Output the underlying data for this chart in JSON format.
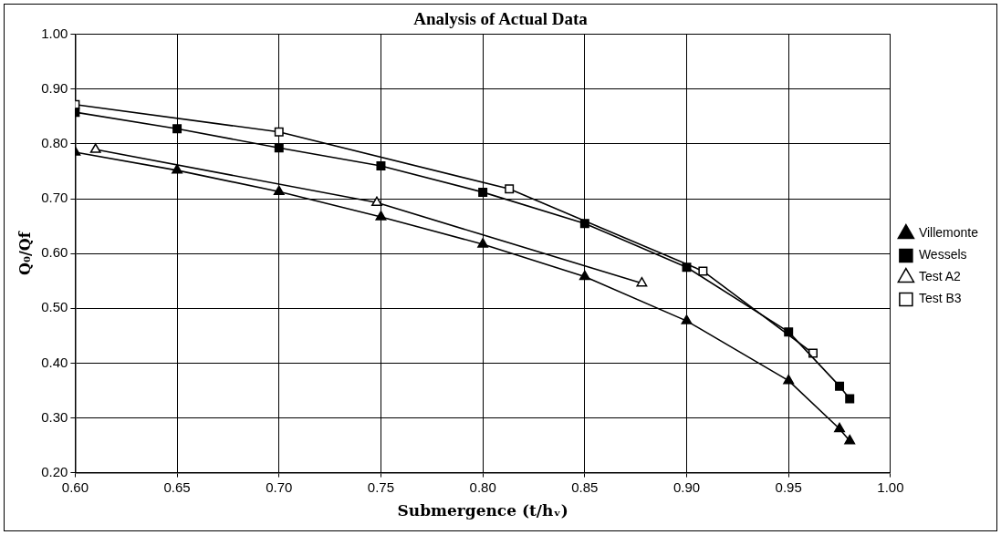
{
  "chart_data": {
    "type": "line",
    "title": "Analysis of Actual Data",
    "xlabel": "Submergence (t/hᵥ)",
    "ylabel": "Q₀/Qf",
    "xlim": [
      0.6,
      1.0
    ],
    "xticks": [
      {
        "value": 0.6,
        "label": "0.60"
      },
      {
        "value": 0.65,
        "label": "0.65"
      },
      {
        "value": 0.7,
        "label": "0.70"
      },
      {
        "value": 0.75,
        "label": "0.75"
      },
      {
        "value": 0.8,
        "label": "0.80"
      },
      {
        "value": 0.85,
        "label": "0.85"
      },
      {
        "value": 0.9,
        "label": "0.90"
      },
      {
        "value": 0.95,
        "label": "0.95"
      },
      {
        "value": 1.0,
        "label": "1.00"
      }
    ],
    "ylim": [
      0.2,
      1.0
    ],
    "yticks": [
      {
        "value": 0.2,
        "label": "0.20"
      },
      {
        "value": 0.3,
        "label": "0.30"
      },
      {
        "value": 0.4,
        "label": "0.40"
      },
      {
        "value": 0.5,
        "label": "0.50"
      },
      {
        "value": 0.6,
        "label": "0.60"
      },
      {
        "value": 0.7,
        "label": "0.70"
      },
      {
        "value": 0.8,
        "label": "0.80"
      },
      {
        "value": 0.9,
        "label": "0.90"
      },
      {
        "value": 1.0,
        "label": "1.00"
      }
    ],
    "grid": true,
    "legend": "right",
    "line_style": "solid",
    "series": [
      {
        "name": "Villemonte",
        "color": "#000000",
        "marker": "triangle",
        "x": [
          0.6,
          0.65,
          0.7,
          0.75,
          0.8,
          0.85,
          0.9,
          0.95,
          0.975,
          0.98
        ],
        "values": [
          0.785,
          0.752,
          0.713,
          0.667,
          0.617,
          0.558,
          0.477,
          0.368,
          0.28,
          0.258
        ]
      },
      {
        "name": "Wessels",
        "color": "#000000",
        "marker": "square",
        "x": [
          0.6,
          0.65,
          0.7,
          0.75,
          0.8,
          0.85,
          0.9,
          0.95,
          0.975,
          0.98
        ],
        "values": [
          0.858,
          0.828,
          0.793,
          0.76,
          0.712,
          0.655,
          0.575,
          0.457,
          0.358,
          0.335
        ]
      },
      {
        "name": "Test A2",
        "color": "#000000",
        "marker": "triangle",
        "x": [
          0.61,
          0.748,
          0.878
        ],
        "values": [
          0.79,
          0.693,
          0.546
        ]
      },
      {
        "name": "Test B3",
        "color": "#000000",
        "marker": "square",
        "x": [
          0.6,
          0.7,
          0.813,
          0.908,
          0.962
        ],
        "values": [
          0.872,
          0.822,
          0.718,
          0.568,
          0.418
        ]
      }
    ]
  }
}
